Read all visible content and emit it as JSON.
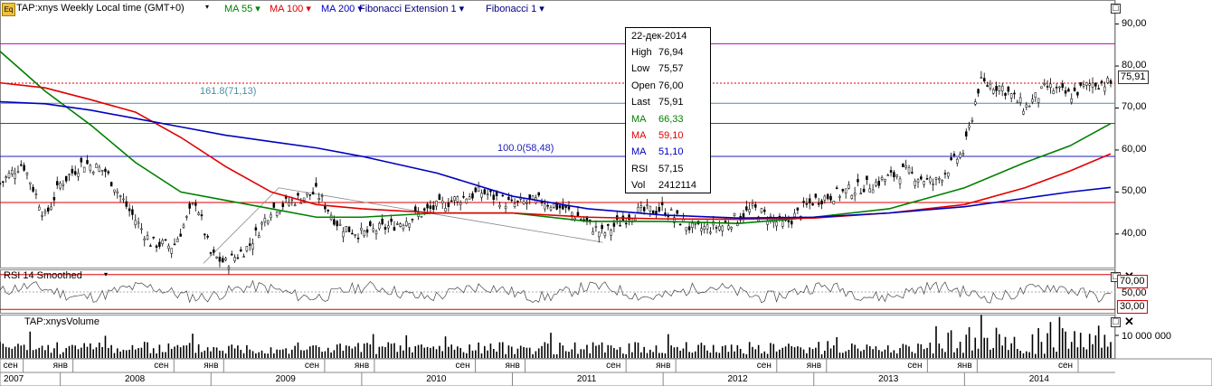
{
  "header": {
    "logo": "Eq",
    "symbol_text": "TAP:xnys Weekly Local time (GMT+0)",
    "legend": [
      {
        "label": "MA 55",
        "color": "#008000"
      },
      {
        "label": "MA 100",
        "color": "#e00000"
      },
      {
        "label": "MA 200",
        "color": "#0000c0"
      },
      {
        "label": "Fibonacci Extension 1",
        "color": "#000080"
      },
      {
        "label": "Fibonacci 1",
        "color": "#000080"
      }
    ]
  },
  "tooltip": {
    "date": "22-дек-2014",
    "rows": [
      {
        "label": "High",
        "value": "76,94",
        "color": "#000000"
      },
      {
        "label": "Low",
        "value": "75,57",
        "color": "#000000"
      },
      {
        "label": "Open",
        "value": "76,00",
        "color": "#000000"
      },
      {
        "label": "Last",
        "value": "75,91",
        "color": "#000000"
      },
      {
        "label": "MA",
        "value": "66,33",
        "color": "#008000"
      },
      {
        "label": "MA",
        "value": "59,10",
        "color": "#e00000"
      },
      {
        "label": "MA",
        "value": "51,10",
        "color": "#0000c0"
      },
      {
        "label": "RSI",
        "value": "57,15",
        "color": "#000000"
      },
      {
        "label": "Vol",
        "value": "2412114",
        "color": "#000000"
      }
    ]
  },
  "fib_labels": [
    {
      "text": "161.8(71,13)",
      "color": "#4a90a4"
    },
    {
      "text": "100.0(58,48)",
      "color": "#2020c0"
    }
  ],
  "price_badge": "75,91",
  "rsi_panel": {
    "title": "RSI 14 Smoothed",
    "levels": [
      "70,00",
      "50,00",
      "30,00"
    ]
  },
  "volume_panel": {
    "title": "TAP:xnysVolume",
    "tick": "10 000 000"
  },
  "x_months": [
    "сен",
    "янв",
    "сен",
    "янв",
    "сен",
    "янв",
    "сен",
    "янв",
    "сен",
    "янв",
    "сен",
    "янв",
    "сен",
    "янв",
    "сен"
  ],
  "x_years": [
    "2007",
    "2008",
    "2009",
    "2010",
    "2011",
    "2012",
    "2013",
    "2014"
  ],
  "chart_data": {
    "type": "line",
    "title": "TAP:xnys Weekly Local time (GMT+0)",
    "xlabel": "",
    "ylabel": "",
    "ylim": [
      32,
      94
    ],
    "y_ticks": [
      "90,00",
      "80,00",
      "70,00",
      "60,00",
      "50,00",
      "40,00"
    ],
    "x_range": [
      "2007-09",
      "2014-12"
    ],
    "series": [
      {
        "name": "MA 55",
        "color": "#008000",
        "x": [
          2007.6,
          2007.9,
          2008.2,
          2008.5,
          2008.8,
          2009.1,
          2009.4,
          2009.7,
          2010.0,
          2010.5,
          2011.0,
          2011.5,
          2012.0,
          2012.5,
          2013.0,
          2013.5,
          2014.0,
          2014.4,
          2014.7,
          2014.97
        ],
        "values": [
          83.5,
          74,
          66,
          57,
          50,
          48,
          46,
          44,
          44,
          45,
          45,
          43,
          43,
          42.5,
          44,
          46,
          51,
          57,
          61,
          66.3
        ]
      },
      {
        "name": "MA 100",
        "color": "#e00000",
        "x": [
          2007.6,
          2007.9,
          2008.2,
          2008.5,
          2008.8,
          2009.1,
          2009.4,
          2009.7,
          2010.0,
          2010.5,
          2011.0,
          2011.5,
          2012.0,
          2012.5,
          2013.0,
          2013.5,
          2014.0,
          2014.4,
          2014.7,
          2014.97
        ],
        "values": [
          76,
          74.8,
          72,
          69,
          63,
          56,
          50,
          47,
          46,
          45,
          45,
          44,
          43.6,
          43.5,
          43.8,
          45,
          47,
          51,
          55,
          59.1
        ]
      },
      {
        "name": "MA 200",
        "color": "#0000c0",
        "x": [
          2007.6,
          2007.9,
          2008.2,
          2008.5,
          2008.8,
          2009.1,
          2009.4,
          2009.7,
          2010.0,
          2010.5,
          2011.0,
          2011.5,
          2012.0,
          2012.5,
          2013.0,
          2013.5,
          2014.0,
          2014.4,
          2014.7,
          2014.97
        ],
        "values": [
          71.5,
          71,
          69.5,
          67.5,
          65.5,
          63.5,
          62,
          60.5,
          58.5,
          54.5,
          49,
          46,
          44.5,
          43.8,
          44,
          45,
          46.5,
          48.5,
          50,
          51.1
        ]
      },
      {
        "name": "Price",
        "color": "#000000",
        "x": [
          2007.6,
          2007.75,
          2007.9,
          2008.0,
          2008.15,
          2008.3,
          2008.45,
          2008.6,
          2008.75,
          2008.9,
          2009.0,
          2009.1,
          2009.25,
          2009.4,
          2009.55,
          2009.7,
          2009.85,
          2010.0,
          2010.2,
          2010.4,
          2010.6,
          2010.8,
          2011.0,
          2011.2,
          2011.4,
          2011.6,
          2011.8,
          2012.0,
          2012.2,
          2012.4,
          2012.6,
          2012.8,
          2013.0,
          2013.2,
          2013.4,
          2013.6,
          2013.8,
          2014.0,
          2014.1,
          2014.25,
          2014.4,
          2014.55,
          2014.7,
          2014.85,
          2014.97
        ],
        "values": [
          52,
          57,
          44,
          52,
          57,
          55,
          46,
          38,
          37,
          48,
          35,
          33,
          37,
          46,
          48,
          50,
          42,
          40,
          42,
          45,
          48,
          50,
          47,
          48,
          45,
          40,
          45,
          46,
          41,
          42,
          46,
          42,
          48,
          50,
          52,
          55,
          52,
          60,
          76,
          75,
          70,
          75,
          73,
          76,
          75.9
        ]
      }
    ],
    "rsi": {
      "name": "RSI 14 Smoothed",
      "ylim": [
        25,
        75
      ],
      "levels": [
        70,
        50,
        30
      ],
      "last": 57.15
    },
    "volume": {
      "name": "TAP:xnysVolume",
      "last": 2412114
    },
    "horizontal_lines": [
      {
        "value": 85.3,
        "color": "#c000c0"
      },
      {
        "value": 75.91,
        "color": "#e00000",
        "dash": true
      },
      {
        "value": 71.13,
        "color": "#4a90a4"
      },
      {
        "value": 66.33,
        "color": "#008000"
      },
      {
        "value": 58.48,
        "color": "#2020c0"
      },
      {
        "value": 47.5,
        "color": "#e00000"
      }
    ]
  }
}
